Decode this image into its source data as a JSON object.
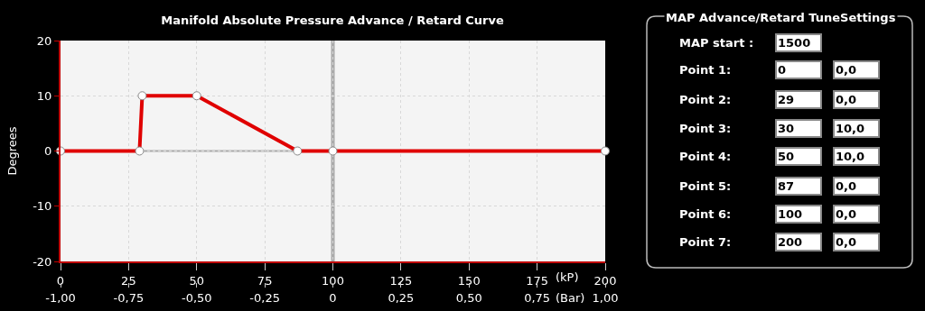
{
  "chart_data": [
    {
      "type": "line",
      "title": "Manifold Absolute Pressure Advance / Retard Curve",
      "ylabel": "Degrees",
      "xlabel": "(kP)",
      "x2label": "(Bar)",
      "x": [
        0,
        29,
        30,
        50,
        87,
        100,
        200
      ],
      "series": [
        {
          "color": "#e00000",
          "values": [
            0,
            0,
            10,
            10,
            0,
            0,
            0
          ]
        }
      ],
      "xlim": [
        0,
        200
      ],
      "xticks": [
        0,
        25,
        50,
        75,
        100,
        125,
        150,
        175,
        200
      ],
      "x2lim": [
        -1,
        1
      ],
      "x2ticks": [
        {
          "value": -1,
          "label": "-1,00"
        },
        {
          "value": -0.75,
          "label": "-0,75"
        },
        {
          "value": -0.5,
          "label": "-0,50"
        },
        {
          "value": -0.25,
          "label": "-0,25"
        },
        0,
        {
          "value": 0.25,
          "label": "0,25"
        },
        {
          "value": 0.5,
          "label": "0,50"
        },
        {
          "value": 0.75,
          "label": "0,75"
        },
        {
          "value": 1,
          "label": "1,00"
        }
      ],
      "ylim": [
        -20,
        20
      ],
      "yticks": [
        -20,
        -10,
        0,
        10,
        20
      ],
      "ref_lines": [
        {
          "axis": "x",
          "value": 100,
          "color": "#aaaaaa"
        },
        {
          "axis": "y",
          "value": 0,
          "color": "#aaaaaa"
        }
      ],
      "grid": true,
      "marker": "circle",
      "line_style": "solid"
    },
    {
      "type": "other",
      "title": "MAP Advance/Retard TuneSettings",
      "annotations": [
        "MAP start :",
        "1500",
        "Point 1:",
        "0",
        "0,0",
        "Point 2:",
        "29",
        "0,0",
        "Point 3:",
        "30",
        "10,0",
        "Point 4:",
        "50",
        "10,0",
        "Point 5:",
        "87",
        "0,0",
        "Point 6:",
        "100",
        "0,0",
        "Point 7:",
        "200",
        "0,0"
      ]
    }
  ]
}
